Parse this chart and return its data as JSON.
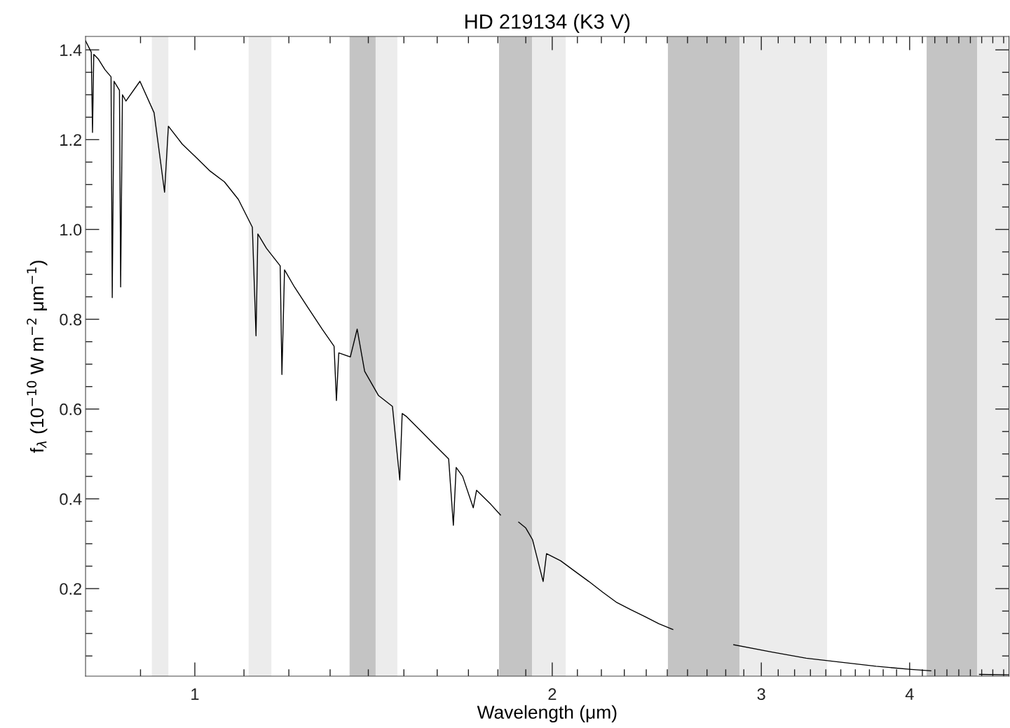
{
  "chart_data": {
    "type": "line",
    "title": "HD 219134 (K3 V)",
    "xlabel": "Wavelength (μm)",
    "ylabel": "f$_{λ}$ (10$^{−10}$ W m$^{−2}$ μm$^{−1}$)",
    "log": "x",
    "xlim": [
      0.809,
      4.85
    ],
    "ylim": [
      0.005,
      1.43
    ],
    "grid": false,
    "marker": "none",
    "line_style": "solid",
    "xticks": [
      {
        "value": 0.9,
        "label": null
      },
      1,
      {
        "value": 1.1,
        "label": null
      },
      {
        "value": 1.2,
        "label": null
      },
      {
        "value": 1.3,
        "label": null
      },
      {
        "value": 1.4,
        "label": null
      },
      {
        "value": 1.5,
        "label": null
      },
      {
        "value": 1.6,
        "label": null
      },
      {
        "value": 1.7,
        "label": null
      },
      {
        "value": 1.8,
        "label": null
      },
      {
        "value": 1.9,
        "label": null
      },
      2,
      {
        "value": 2.1,
        "label": null
      },
      {
        "value": 2.2,
        "label": null
      },
      {
        "value": 2.3,
        "label": null
      },
      {
        "value": 2.4,
        "label": null
      },
      {
        "value": 2.5,
        "label": null
      },
      {
        "value": 2.6,
        "label": null
      },
      {
        "value": 2.7,
        "label": null
      },
      {
        "value": 2.8,
        "label": null
      },
      {
        "value": 2.9,
        "label": null
      },
      3,
      {
        "value": 3.1,
        "label": null
      },
      {
        "value": 3.2,
        "label": null
      },
      {
        "value": 3.3,
        "label": null
      },
      {
        "value": 3.4,
        "label": null
      },
      {
        "value": 3.5,
        "label": null
      },
      {
        "value": 3.6,
        "label": null
      },
      {
        "value": 3.7,
        "label": null
      },
      {
        "value": 3.8,
        "label": null
      },
      {
        "value": 3.9,
        "label": null
      },
      4,
      {
        "value": 4.1,
        "label": null
      },
      {
        "value": 4.2,
        "label": null
      },
      {
        "value": 4.3,
        "label": null
      },
      {
        "value": 4.4,
        "label": null
      },
      {
        "value": 4.5,
        "label": null
      },
      {
        "value": 4.6,
        "label": null
      },
      {
        "value": 4.7,
        "label": null
      },
      {
        "value": 4.8,
        "label": null
      }
    ],
    "yticks": [
      {
        "value": 0.05,
        "label": null
      },
      {
        "value": 0.1,
        "label": null
      },
      {
        "value": 0.15,
        "label": null
      },
      {
        "value": 0.2,
        "label": "0.2"
      },
      {
        "value": 0.25,
        "label": null
      },
      {
        "value": 0.3,
        "label": null
      },
      {
        "value": 0.35,
        "label": null
      },
      {
        "value": 0.4,
        "label": "0.4"
      },
      {
        "value": 0.45,
        "label": null
      },
      {
        "value": 0.5,
        "label": null
      },
      {
        "value": 0.55,
        "label": null
      },
      {
        "value": 0.6,
        "label": "0.6"
      },
      {
        "value": 0.65,
        "label": null
      },
      {
        "value": 0.7,
        "label": null
      },
      {
        "value": 0.75,
        "label": null
      },
      {
        "value": 0.8,
        "label": "0.8"
      },
      {
        "value": 0.85,
        "label": null
      },
      {
        "value": 0.9,
        "label": null
      },
      {
        "value": 0.95,
        "label": null
      },
      {
        "value": 1.0,
        "label": "1.0"
      },
      {
        "value": 1.05,
        "label": null
      },
      {
        "value": 1.1,
        "label": null
      },
      {
        "value": 1.15,
        "label": null
      },
      {
        "value": 1.2,
        "label": "1.2"
      },
      {
        "value": 1.25,
        "label": null
      },
      {
        "value": 1.3,
        "label": null
      },
      {
        "value": 1.35,
        "label": null
      },
      {
        "value": 1.4,
        "label": "1.4"
      }
    ],
    "bands": [
      {
        "axis": "x",
        "from": 0.92,
        "to": 0.95,
        "color": "#ececec"
      },
      {
        "axis": "x",
        "from": 1.11,
        "to": 1.16,
        "color": "#ececec"
      },
      {
        "axis": "x",
        "from": 1.35,
        "to": 1.42,
        "color": "#c4c4c4"
      },
      {
        "axis": "x",
        "from": 1.42,
        "to": 1.481,
        "color": "#ececec"
      },
      {
        "axis": "x",
        "from": 1.804,
        "to": 1.923,
        "color": "#c4c4c4"
      },
      {
        "axis": "x",
        "from": 1.923,
        "to": 2.053,
        "color": "#ececec"
      },
      {
        "axis": "x",
        "from": 2.503,
        "to": 2.876,
        "color": "#c4c4c4"
      },
      {
        "axis": "x",
        "from": 2.876,
        "to": 3.408,
        "color": "#ececec"
      },
      {
        "axis": "x",
        "from": 4.134,
        "to": 4.559,
        "color": "#c4c4c4"
      },
      {
        "axis": "x",
        "from": 4.559,
        "to": 4.85,
        "color": "#ececec"
      }
    ],
    "series": [
      {
        "color": "#000000",
        "x": [
          0.809,
          0.818,
          0.82,
          0.822,
          0.829,
          0.84,
          0.85,
          0.852,
          0.855,
          0.864,
          0.866,
          0.869,
          0.875,
          0.899,
          0.924,
          0.943,
          0.95,
          0.976,
          1.003,
          1.03,
          1.059,
          1.088,
          1.118,
          1.126,
          1.13,
          1.149,
          1.18,
          1.184,
          1.19,
          1.213,
          1.246,
          1.28,
          1.31,
          1.316,
          1.322,
          1.352,
          1.37,
          1.39,
          1.428,
          1.467,
          1.488,
          1.495,
          1.508,
          1.549,
          1.592,
          1.636,
          1.651,
          1.66,
          1.681,
          1.716,
          1.727,
          1.775,
          1.809,
          1.84,
          1.874,
          1.9,
          1.925,
          1.965,
          1.978,
          2.033,
          2.089,
          2.147,
          2.206,
          2.267,
          2.329,
          2.393,
          2.459,
          2.527,
          2.7,
          2.844,
          3.057,
          3.273,
          3.502,
          3.748,
          4.011,
          4.168,
          4.4,
          4.58,
          4.85
        ],
        "values": [
          1.42,
          1.395,
          1.216,
          1.39,
          1.38,
          1.356,
          1.34,
          0.848,
          1.33,
          1.31,
          0.872,
          1.3,
          1.286,
          1.33,
          1.26,
          1.083,
          1.23,
          1.19,
          1.16,
          1.13,
          1.106,
          1.067,
          1.005,
          0.763,
          0.99,
          0.958,
          0.919,
          0.677,
          0.91,
          0.872,
          0.825,
          0.778,
          0.74,
          0.619,
          0.725,
          0.716,
          0.778,
          0.684,
          0.63,
          0.606,
          0.442,
          0.59,
          0.583,
          0.552,
          0.52,
          0.489,
          0.341,
          0.47,
          0.45,
          0.38,
          0.419,
          0.388,
          0.364,
          null,
          0.348,
          0.335,
          0.309,
          0.216,
          0.278,
          0.262,
          0.239,
          0.216,
          0.192,
          0.169,
          0.153,
          0.138,
          0.122,
          0.109,
          null,
          0.075,
          0.059,
          0.045,
          0.036,
          0.027,
          0.02,
          0.017,
          null,
          0.009,
          0.008
        ]
      }
    ]
  }
}
